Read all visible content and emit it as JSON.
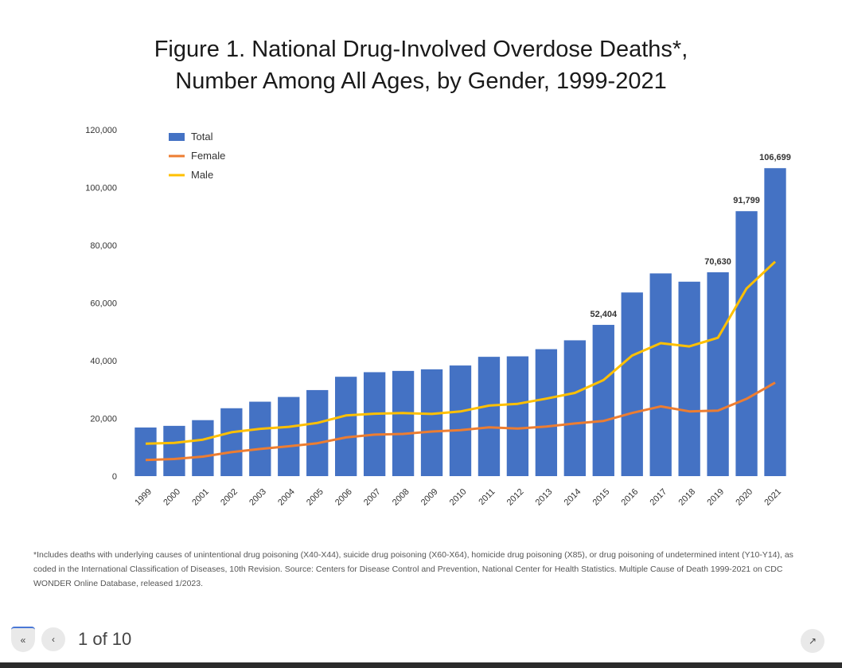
{
  "title": {
    "line1": "Figure 1. National Drug-Involved Overdose Deaths*,",
    "line2": "Number Among All Ages, by Gender, 1999-2021"
  },
  "chart_data": {
    "type": "bar",
    "title": "Figure 1. National Drug-Involved Overdose Deaths*, Number Among All Ages, by Gender, 1999-2021",
    "categories": [
      "1999",
      "2000",
      "2001",
      "2002",
      "2003",
      "2004",
      "2005",
      "2006",
      "2007",
      "2008",
      "2009",
      "2010",
      "2011",
      "2012",
      "2013",
      "2014",
      "2015",
      "2016",
      "2017",
      "2018",
      "2019",
      "2020",
      "2021"
    ],
    "series": [
      {
        "name": "Total",
        "kind": "bar",
        "color": "#4472c4",
        "values": [
          16849,
          17415,
          19394,
          23518,
          25785,
          27424,
          29813,
          34425,
          36010,
          36450,
          37004,
          38329,
          41340,
          41502,
          43982,
          47055,
          52404,
          63632,
          70237,
          67367,
          70630,
          91799,
          106699
        ]
      },
      {
        "name": "Female",
        "kind": "line",
        "color": "#ed7d31",
        "values": [
          5591,
          5920,
          6770,
          8310,
          9410,
          10340,
          11390,
          13410,
          14380,
          14610,
          15460,
          15920,
          16900,
          16460,
          17150,
          18240,
          19130,
          21880,
          24160,
          22440,
          22690,
          26780,
          32400
        ]
      },
      {
        "name": "Male",
        "kind": "line",
        "color": "#ffc000",
        "values": [
          11258,
          11495,
          12624,
          15208,
          16375,
          17084,
          18423,
          21015,
          21630,
          21840,
          21544,
          22409,
          24440,
          25042,
          26832,
          28815,
          33274,
          41752,
          46077,
          44927,
          47940,
          65019,
          74299
        ]
      }
    ],
    "data_labels": [
      {
        "index": 16,
        "text": "52,404"
      },
      {
        "index": 20,
        "text": "70,630"
      },
      {
        "index": 21,
        "text": "91,799"
      },
      {
        "index": 22,
        "text": "106,699"
      }
    ],
    "yticks": [
      "0",
      "20,000",
      "40,000",
      "60,000",
      "80,000",
      "100,000",
      "120,000"
    ],
    "ylim": [
      0,
      120000
    ],
    "grid": false,
    "legend": "top-left"
  },
  "footnote": "*Includes deaths with underlying causes of unintentional drug poisoning (X40-X44), suicide drug poisoning (X60-X64), homicide drug poisoning (X85), or drug poisoning of undetermined intent (Y10-Y14), as coded in the International Classification of Diseases, 10th Revision. Source: Centers for Disease Control and Prevention, National Center for Health Statistics. Multiple Cause of Death 1999-2021 on CDC WONDER Online Database, released 1/2023.",
  "pager": {
    "first_icon": "double-chevron-left-icon",
    "prev_icon": "chevron-left-icon",
    "label": "1 of 10",
    "expand_icon": "expand-icon"
  }
}
